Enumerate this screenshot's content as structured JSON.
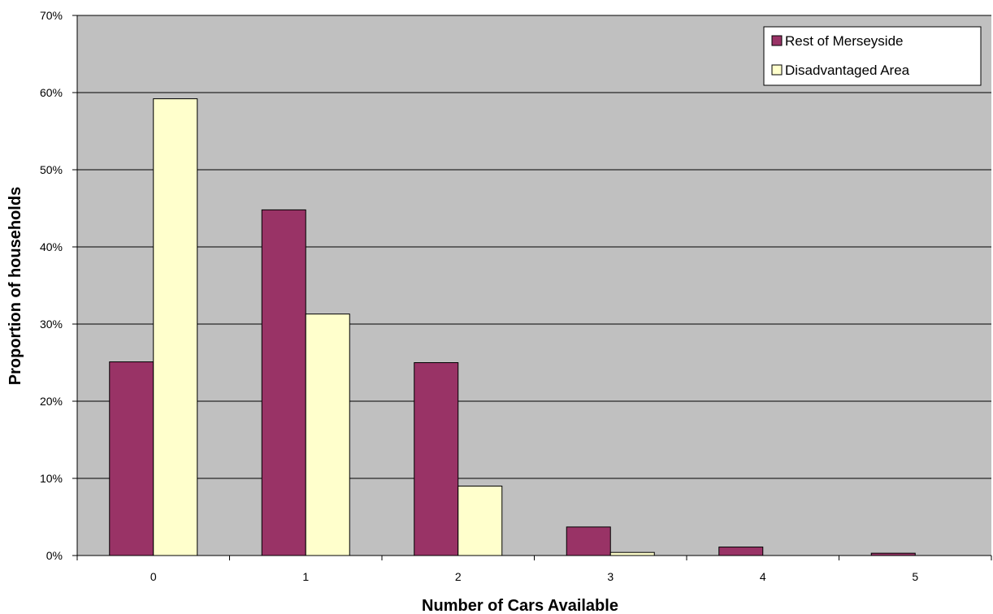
{
  "chart_data": {
    "type": "bar",
    "title": "",
    "xlabel": "Number of Cars Available",
    "ylabel": "Proportion of households",
    "categories": [
      "0",
      "1",
      "2",
      "3",
      "4",
      "5"
    ],
    "ylim": [
      0,
      70
    ],
    "yticks": [
      0,
      10,
      20,
      30,
      40,
      50,
      60,
      70
    ],
    "ytick_labels": [
      "0%",
      "10%",
      "20%",
      "30%",
      "40%",
      "50%",
      "60%",
      "70%"
    ],
    "grid": true,
    "legend_position": "top-right",
    "series": [
      {
        "name": "Rest of Merseyside",
        "color": "#993366",
        "values": [
          25.1,
          44.8,
          25.0,
          3.7,
          1.1,
          0.3
        ]
      },
      {
        "name": "Disadvantaged Area",
        "color": "#FFFFCC",
        "values": [
          59.2,
          31.3,
          9.0,
          0.4,
          0.0,
          0.0
        ]
      }
    ],
    "plot_background": "#C0C0C0"
  }
}
